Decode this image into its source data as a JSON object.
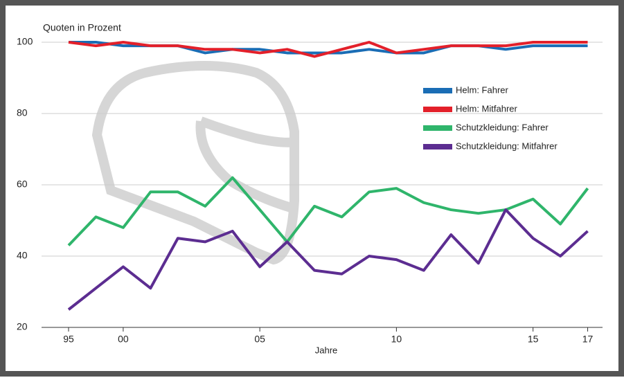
{
  "chart_data": {
    "type": "line",
    "y_axis_title": "Quoten in Prozent",
    "x_axis_title": "Jahre",
    "categories": [
      "95",
      null,
      "00",
      null,
      null,
      null,
      null,
      "05",
      null,
      null,
      null,
      null,
      "10",
      null,
      null,
      null,
      null,
      "15",
      null,
      "17"
    ],
    "series": [
      {
        "name": "Helm: Fahrer",
        "color": "#1a6db5",
        "values": [
          100,
          100,
          99,
          99,
          99,
          97,
          98,
          98,
          97,
          97,
          97,
          98,
          97,
          97,
          99,
          99,
          98,
          99,
          99,
          99
        ]
      },
      {
        "name": "Helm: Mitfahrer",
        "color": "#e3202a",
        "values": [
          100,
          99,
          100,
          99,
          99,
          98,
          98,
          97,
          98,
          96,
          98,
          100,
          97,
          98,
          99,
          99,
          99,
          100,
          100,
          100
        ]
      },
      {
        "name": "Schutzkleidung: Fahrer",
        "color": "#2fb56b",
        "values": [
          43,
          51,
          48,
          58,
          58,
          54,
          62,
          53,
          44,
          54,
          51,
          58,
          59,
          55,
          53,
          52,
          53,
          56,
          49,
          59
        ]
      },
      {
        "name": "Schutzkleidung: Mitfahrer",
        "color": "#5c2d91",
        "values": [
          25,
          31,
          37,
          31,
          45,
          44,
          47,
          37,
          44,
          36,
          35,
          40,
          39,
          36,
          46,
          38,
          53,
          45,
          40,
          47
        ]
      }
    ],
    "ylim": [
      20,
      100
    ],
    "yticks": [
      20,
      40,
      60,
      80,
      100
    ],
    "grid": true,
    "legend": "upper-right"
  }
}
